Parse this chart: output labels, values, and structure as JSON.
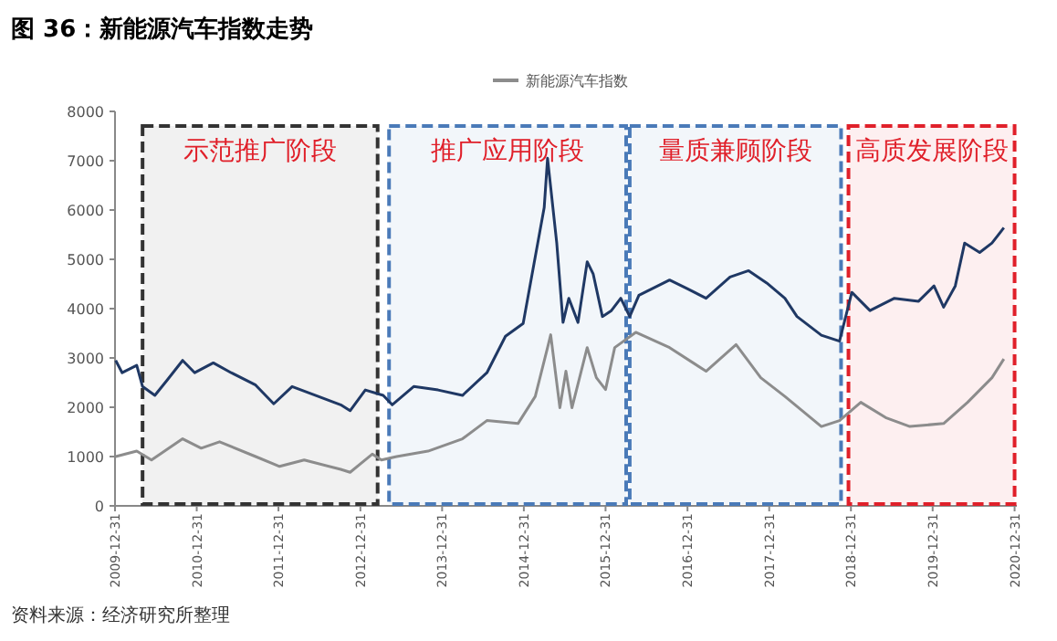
{
  "chart_data": {
    "type": "line",
    "title": "图 36：新能源汽车指数走势",
    "legend": "top",
    "xlim": [
      "2009-12-31",
      "2021-01-10"
    ],
    "xticks": [
      "2009-12-31",
      "2010-12-31",
      "2011-12-31",
      "2012-12-31",
      "2013-12-31",
      "2014-12-31",
      "2015-12-31",
      "2016-12-31",
      "2017-12-31",
      "2018-12-31",
      "2019-12-31",
      "2020-12-31"
    ],
    "ylim": [
      0,
      8000
    ],
    "yticks": [
      0,
      1000,
      2000,
      3000,
      4000,
      5000,
      6000,
      7000,
      8000
    ],
    "series": [
      {
        "color": "#1f3864",
        "x": [
          "2010-01-03",
          "2010-02-01",
          "2010-04-07",
          "2010-05-03",
          "2010-06-27",
          "2010-08-21",
          "2010-10-29",
          "2010-12-22",
          "2011-03-15",
          "2011-06-03",
          "2011-09-20",
          "2011-12-10",
          "2012-03-01",
          "2012-06-15",
          "2012-10-04",
          "2012-11-15",
          "2013-01-22",
          "2013-04-12",
          "2013-05-22",
          "2013-08-26",
          "2013-12-13",
          "2014-04-01",
          "2014-07-19",
          "2014-10-10",
          "2014-12-28",
          "2015-02-20",
          "2015-04-01",
          "2015-04-16",
          "2015-05-27",
          "2015-06-24",
          "2015-07-20",
          "2015-08-30",
          "2015-10-10",
          "2015-11-06",
          "2015-12-17",
          "2016-01-26",
          "2016-03-08",
          "2016-04-17",
          "2016-05-28",
          "2016-10-12",
          "2017-01-01",
          "2017-03-24",
          "2017-07-09",
          "2017-09-30",
          "2017-12-20",
          "2018-03-11",
          "2018-05-04",
          "2018-08-21",
          "2018-11-10",
          "2019-01-04",
          "2019-03-26",
          "2019-07-13",
          "2019-10-29",
          "2020-01-06",
          "2020-02-18",
          "2020-04-10",
          "2020-05-22",
          "2020-07-28",
          "2020-09-21",
          "2020-11-13"
        ],
        "values": [
          2950,
          2700,
          2850,
          2420,
          2240,
          2550,
          2950,
          2700,
          2900,
          2700,
          2450,
          2070,
          2420,
          2240,
          2050,
          1930,
          2350,
          2240,
          2050,
          2420,
          2350,
          2240,
          2700,
          3440,
          3700,
          5050,
          6050,
          7050,
          5330,
          3720,
          4210,
          3720,
          4950,
          4700,
          3840,
          3960,
          4210,
          3840,
          4270,
          4580,
          4400,
          4210,
          4640,
          4770,
          4520,
          4210,
          3840,
          3460,
          3340,
          4330,
          3960,
          4210,
          4150,
          4460,
          4030,
          4460,
          5330,
          5140,
          5330,
          5640
        ]
      },
      {
        "name": "新能源汽车指数",
        "color": "#8c8c8c",
        "x": [
          "2010-01-03",
          "2010-04-07",
          "2010-06-12",
          "2010-10-29",
          "2011-01-20",
          "2011-04-12",
          "2011-09-20",
          "2012-01-05",
          "2012-04-24",
          "2012-10-04",
          "2012-11-15",
          "2013-02-22",
          "2013-04-04",
          "2013-06-11",
          "2013-10-29",
          "2014-04-01",
          "2014-07-19",
          "2014-12-05",
          "2015-02-20",
          "2015-04-16",
          "2015-04-30",
          "2015-06-10",
          "2015-07-07",
          "2015-08-03",
          "2015-10-10",
          "2015-11-20",
          "2015-12-31",
          "2016-02-10",
          "2016-05-14",
          "2016-10-12",
          "2017-03-24",
          "2017-08-05",
          "2017-11-23",
          "2018-03-11",
          "2018-08-21",
          "2018-11-10",
          "2019-02-13",
          "2019-06-04",
          "2019-09-20",
          "2020-02-18",
          "2020-06-04",
          "2020-09-21",
          "2020-11-13"
        ],
        "values": [
          1000,
          1110,
          930,
          1360,
          1170,
          1300,
          1000,
          800,
          930,
          740,
          680,
          1050,
          930,
          1000,
          1110,
          1360,
          1730,
          1670,
          2220,
          3210,
          3470,
          1990,
          2730,
          1990,
          3210,
          2600,
          2360,
          3210,
          3520,
          3210,
          2730,
          3270,
          2600,
          2220,
          1610,
          1730,
          2100,
          1790,
          1610,
          1670,
          2100,
          2600,
          2980
        ]
      }
    ],
    "bands": [
      {
        "axis": "x",
        "from": "2010-05-03",
        "to": "2013-03-18",
        "label": "示范推广阶段",
        "color": "#333333"
      },
      {
        "axis": "x",
        "from": "2013-05-08",
        "to": "2016-04-01",
        "label": "推广应用阶段",
        "color": "#4a7ab8"
      },
      {
        "axis": "x",
        "from": "2016-04-17",
        "to": "2018-11-17",
        "label": "量质兼顾阶段",
        "color": "#4a7ab8"
      },
      {
        "axis": "x",
        "from": "2018-12-20",
        "to": "2020-12-31",
        "label": "高质发展阶段",
        "color": "#e0202a"
      }
    ],
    "annotations": [
      "资料来源：经济研究所整理"
    ]
  }
}
